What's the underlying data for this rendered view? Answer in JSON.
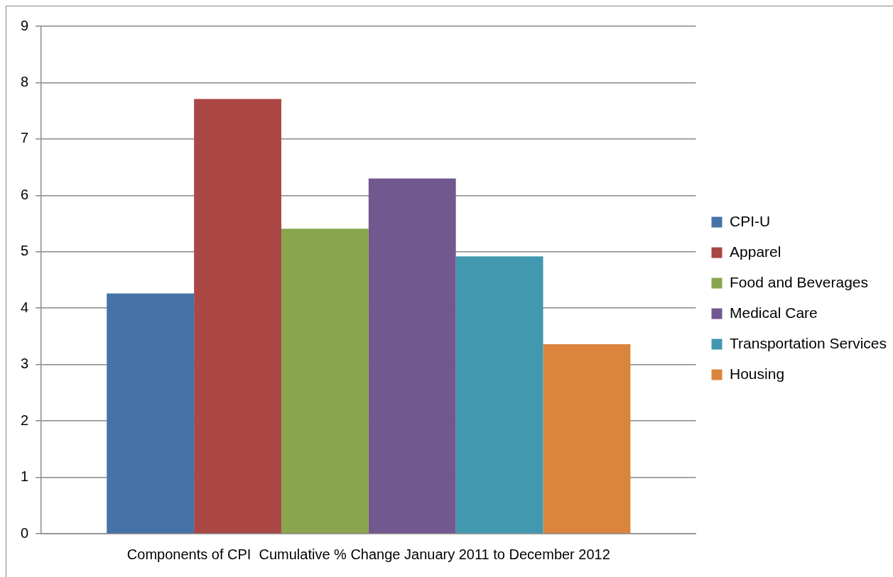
{
  "chart_data": {
    "type": "bar",
    "categories": [
      "Components of CPI  Cumulative % Change January 2011 to December 2012"
    ],
    "series": [
      {
        "name": "CPI-U",
        "color": "#4572a7",
        "values": [
          4.26
        ]
      },
      {
        "name": "Apparel",
        "color": "#aa4643",
        "values": [
          7.71
        ]
      },
      {
        "name": "Food and Beverages",
        "color": "#89a54e",
        "values": [
          5.41
        ]
      },
      {
        "name": "Medical Care",
        "color": "#71588f",
        "values": [
          6.3
        ]
      },
      {
        "name": "Transportation Services",
        "color": "#4198af",
        "values": [
          4.92
        ]
      },
      {
        "name": "Housing",
        "color": "#db843d",
        "values": [
          3.36
        ]
      }
    ],
    "ylim": [
      0,
      9
    ],
    "yticks": [
      0,
      1,
      2,
      3,
      4,
      5,
      6,
      7,
      8,
      9
    ],
    "grid": "y",
    "legend": "right"
  }
}
